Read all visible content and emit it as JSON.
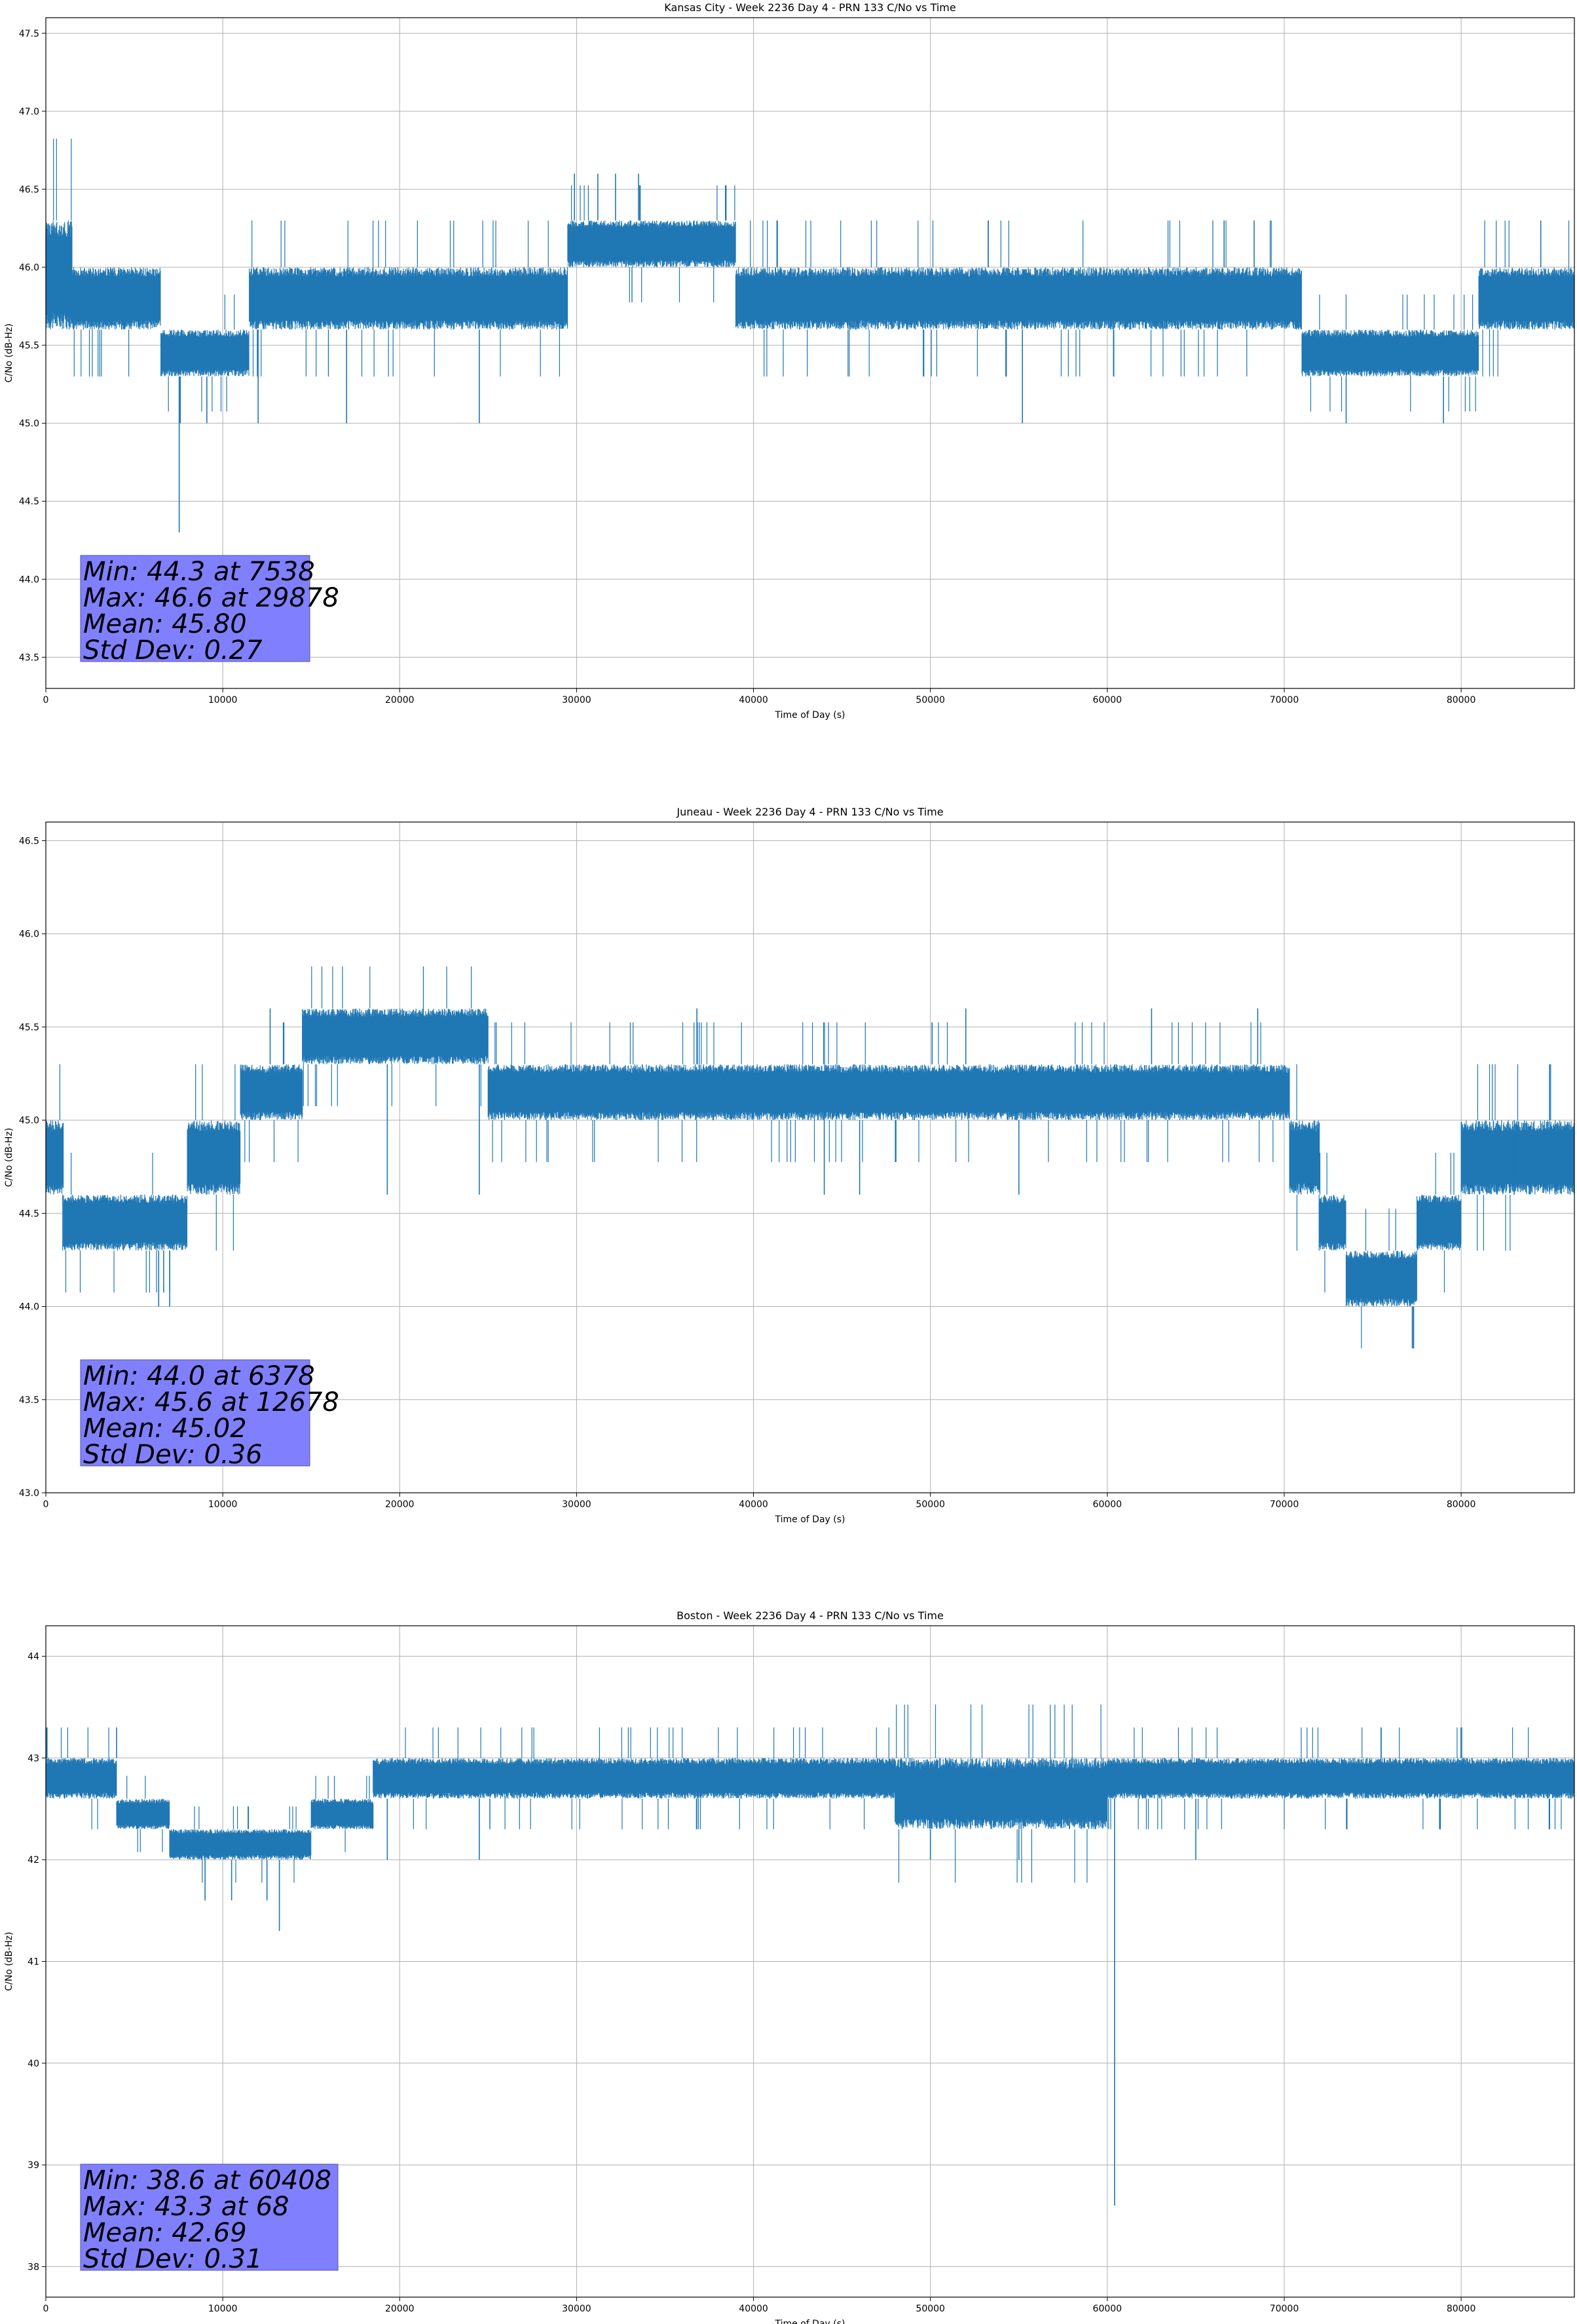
{
  "chart_data": [
    {
      "type": "line",
      "title": "Kansas City - Week 2236 Day 4 - PRN 133 C/No vs Time",
      "xlabel": "Time of Day (s)",
      "ylabel": "C/No (dB-Hz)",
      "xlim": [
        0,
        86400
      ],
      "ylim": [
        43.3,
        47.6
      ],
      "xticks": [
        0,
        10000,
        20000,
        30000,
        40000,
        50000,
        60000,
        70000,
        80000
      ],
      "yticks": [
        43.5,
        44.0,
        44.5,
        45.0,
        45.5,
        46.0,
        46.5,
        47.0,
        47.5
      ],
      "ytick_labels": [
        "43.5",
        "44.0",
        "44.5",
        "45.0",
        "45.5",
        "46.0",
        "46.5",
        "47.0",
        "47.5"
      ],
      "grid": true,
      "color": "#1f77b4",
      "stats": [
        "Min: 44.3 at 7538",
        "Max: 46.6 at 29878",
        "Mean: 45.80",
        "Std Dev: 0.27"
      ],
      "bands": [
        {
          "x": [
            0,
            1500
          ],
          "range": [
            45.6,
            46.3
          ]
        },
        {
          "x": [
            1500,
            6500
          ],
          "range": [
            45.6,
            46.0
          ]
        },
        {
          "x": [
            6500,
            11500
          ],
          "range": [
            45.3,
            45.6
          ]
        },
        {
          "x": [
            11500,
            29500
          ],
          "range": [
            45.6,
            46.0
          ]
        },
        {
          "x": [
            29500,
            39000
          ],
          "range": [
            46.0,
            46.3
          ]
        },
        {
          "x": [
            39000,
            71000
          ],
          "range": [
            45.6,
            46.0
          ]
        },
        {
          "x": [
            71000,
            81000
          ],
          "range": [
            45.3,
            45.6
          ]
        },
        {
          "x": [
            81000,
            86400
          ],
          "range": [
            45.6,
            46.0
          ]
        }
      ],
      "spikes": [
        {
          "x": 7538,
          "y": 44.3
        },
        {
          "x": 7600,
          "y": 45.0
        },
        {
          "x": 9100,
          "y": 45.0
        },
        {
          "x": 12000,
          "y": 45.0
        },
        {
          "x": 17000,
          "y": 45.0
        },
        {
          "x": 24500,
          "y": 45.0
        },
        {
          "x": 29878,
          "y": 46.6
        },
        {
          "x": 31200,
          "y": 46.6
        },
        {
          "x": 32200,
          "y": 46.6
        },
        {
          "x": 33500,
          "y": 46.6
        },
        {
          "x": 55200,
          "y": 45.0
        },
        {
          "x": 73500,
          "y": 45.0
        },
        {
          "x": 79000,
          "y": 45.0
        },
        {
          "x": 66600,
          "y": 46.3
        },
        {
          "x": 68300,
          "y": 46.3
        },
        {
          "x": 84500,
          "y": 46.3
        }
      ]
    },
    {
      "type": "line",
      "title": "Juneau - Week 2236 Day 4 - PRN 133 C/No vs Time",
      "xlabel": "Time of Day (s)",
      "ylabel": "C/No (dB-Hz)",
      "xlim": [
        0,
        86400
      ],
      "ylim": [
        43.0,
        46.6
      ],
      "xticks": [
        0,
        10000,
        20000,
        30000,
        40000,
        50000,
        60000,
        70000,
        80000
      ],
      "yticks": [
        43.0,
        43.5,
        44.0,
        44.5,
        45.0,
        45.5,
        46.0,
        46.5
      ],
      "ytick_labels": [
        "43.0",
        "43.5",
        "44.0",
        "44.5",
        "45.0",
        "45.5",
        "46.0",
        "46.5"
      ],
      "grid": true,
      "color": "#1f77b4",
      "stats": [
        "Min: 44.0 at 6378",
        "Max: 45.6 at 12678",
        "Mean: 45.02",
        "Std Dev: 0.36"
      ],
      "bands": [
        {
          "x": [
            0,
            1000
          ],
          "range": [
            44.6,
            45.0
          ]
        },
        {
          "x": [
            1000,
            6500
          ],
          "range": [
            44.3,
            44.6
          ]
        },
        {
          "x": [
            6500,
            8000
          ],
          "range": [
            44.3,
            44.6
          ]
        },
        {
          "x": [
            8000,
            11000
          ],
          "range": [
            44.6,
            45.0
          ]
        },
        {
          "x": [
            11000,
            14500
          ],
          "range": [
            45.0,
            45.3
          ]
        },
        {
          "x": [
            14500,
            25000
          ],
          "range": [
            45.3,
            45.6
          ]
        },
        {
          "x": [
            25000,
            70300
          ],
          "range": [
            45.0,
            45.3
          ]
        },
        {
          "x": [
            70300,
            72000
          ],
          "range": [
            44.6,
            45.0
          ]
        },
        {
          "x": [
            72000,
            73500
          ],
          "range": [
            44.3,
            44.6
          ]
        },
        {
          "x": [
            73500,
            77500
          ],
          "range": [
            44.0,
            44.3
          ]
        },
        {
          "x": [
            77500,
            80000
          ],
          "range": [
            44.3,
            44.6
          ]
        },
        {
          "x": [
            80000,
            86400
          ],
          "range": [
            44.6,
            45.0
          ]
        }
      ],
      "spikes": [
        {
          "x": 6378,
          "y": 44.0
        },
        {
          "x": 7000,
          "y": 44.0
        },
        {
          "x": 12678,
          "y": 45.6
        },
        {
          "x": 19300,
          "y": 44.6
        },
        {
          "x": 24500,
          "y": 44.6
        },
        {
          "x": 36800,
          "y": 45.6
        },
        {
          "x": 44000,
          "y": 44.6
        },
        {
          "x": 46000,
          "y": 44.6
        },
        {
          "x": 52000,
          "y": 45.6
        },
        {
          "x": 55000,
          "y": 44.6
        },
        {
          "x": 62500,
          "y": 45.6
        },
        {
          "x": 68500,
          "y": 45.6
        },
        {
          "x": 83000,
          "y": 44.6
        },
        {
          "x": 85000,
          "y": 45.3
        }
      ]
    },
    {
      "type": "line",
      "title": "Boston - Week 2236 Day 4 - PRN 133 C/No vs Time",
      "xlabel": "Time of Day (s)",
      "ylabel": "C/No (dB-Hz)",
      "xlim": [
        0,
        86400
      ],
      "ylim": [
        37.7,
        44.3
      ],
      "xticks": [
        0,
        10000,
        20000,
        30000,
        40000,
        50000,
        60000,
        70000,
        80000
      ],
      "yticks": [
        38,
        39,
        40,
        41,
        42,
        43,
        44
      ],
      "ytick_labels": [
        "38",
        "39",
        "40",
        "41",
        "42",
        "43",
        "44"
      ],
      "grid": true,
      "color": "#1f77b4",
      "stats": [
        "Min: 38.6 at 60408",
        "Max: 43.3 at 68",
        "Mean: 42.69",
        "Std Dev: 0.31"
      ],
      "bands": [
        {
          "x": [
            0,
            4000
          ],
          "range": [
            42.6,
            43.0
          ]
        },
        {
          "x": [
            4000,
            7000
          ],
          "range": [
            42.3,
            42.6
          ]
        },
        {
          "x": [
            7000,
            15000
          ],
          "range": [
            42.0,
            42.3
          ]
        },
        {
          "x": [
            15000,
            18500
          ],
          "range": [
            42.3,
            42.6
          ]
        },
        {
          "x": [
            18500,
            48000
          ],
          "range": [
            42.6,
            43.0
          ]
        },
        {
          "x": [
            48000,
            60000
          ],
          "range": [
            42.3,
            43.0
          ]
        },
        {
          "x": [
            60000,
            86400
          ],
          "range": [
            42.6,
            43.0
          ]
        }
      ],
      "spikes": [
        {
          "x": 68,
          "y": 43.3
        },
        {
          "x": 4000,
          "y": 43.3
        },
        {
          "x": 9000,
          "y": 41.6
        },
        {
          "x": 10500,
          "y": 41.6
        },
        {
          "x": 12500,
          "y": 41.6
        },
        {
          "x": 13200,
          "y": 41.3
        },
        {
          "x": 19300,
          "y": 42.0
        },
        {
          "x": 24500,
          "y": 42.0
        },
        {
          "x": 50000,
          "y": 42.0
        },
        {
          "x": 55000,
          "y": 42.0
        },
        {
          "x": 60408,
          "y": 38.6
        },
        {
          "x": 65000,
          "y": 42.0
        },
        {
          "x": 85000,
          "y": 42.3
        }
      ]
    }
  ]
}
